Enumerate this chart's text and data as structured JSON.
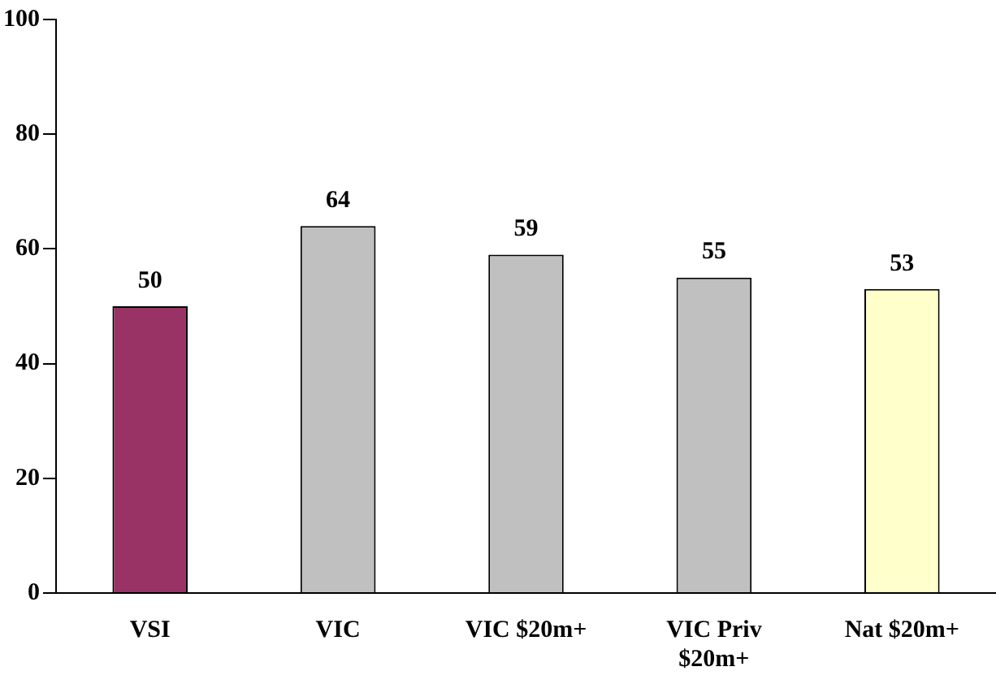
{
  "chart_data": {
    "type": "bar",
    "categories": [
      "VSI",
      "VIC",
      "VIC $20m+",
      "VIC Priv $20m+",
      "Nat $20m+"
    ],
    "values": [
      50,
      64,
      59,
      55,
      53
    ],
    "colors": [
      "#993366",
      "#c0c0c0",
      "#c0c0c0",
      "#c0c0c0",
      "#ffffcc"
    ],
    "ylim": [
      0,
      100
    ],
    "yticks": [
      0,
      20,
      40,
      60,
      80,
      100
    ],
    "data_labels": true,
    "grid": false,
    "legend": false
  }
}
